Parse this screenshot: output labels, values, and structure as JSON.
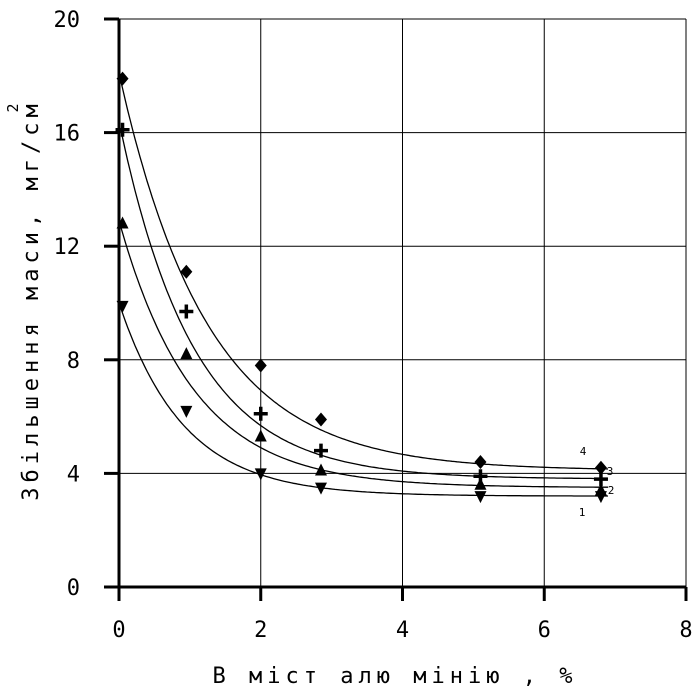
{
  "chart_data": {
    "type": "line",
    "title": "",
    "xlabel": "В міст алю мінію ,  %",
    "ylabel": "Збільшення маси, мг/см",
    "ylabel_superscript": "2",
    "xlim": [
      0,
      8
    ],
    "ylim": [
      0,
      20
    ],
    "x_ticks": [
      0,
      2,
      4,
      6,
      8
    ],
    "x_tick_labels": [
      "0",
      "2",
      "4",
      "6",
      "8"
    ],
    "y_ticks": [
      0,
      4,
      8,
      12,
      16,
      20
    ],
    "y_tick_labels": [
      "0",
      "4",
      "8",
      "12",
      "16",
      "20"
    ],
    "grid": true,
    "legend": "none",
    "series": [
      {
        "name": "1",
        "marker": "triangle-down",
        "x": [
          0.05,
          0.95,
          2.0,
          2.85,
          5.1,
          6.8
        ],
        "y": [
          9.9,
          6.2,
          4.0,
          3.5,
          3.2,
          3.2
        ],
        "curve": {
          "a": 3.2,
          "b": 6.8,
          "k": 1.1
        }
      },
      {
        "name": "2",
        "marker": "triangle-up",
        "x": [
          0.05,
          0.95,
          2.0,
          2.85,
          5.1,
          6.8
        ],
        "y": [
          12.8,
          8.2,
          5.3,
          4.1,
          3.6,
          3.4
        ],
        "curve": {
          "a": 3.5,
          "b": 9.4,
          "k": 0.95
        }
      },
      {
        "name": "3",
        "marker": "cross",
        "x": [
          0.05,
          0.95,
          2.0,
          2.85,
          5.1,
          6.8
        ],
        "y": [
          16.1,
          9.7,
          6.1,
          4.8,
          3.9,
          3.8
        ],
        "curve": {
          "a": 3.8,
          "b": 12.6,
          "k": 0.95
        }
      },
      {
        "name": "4",
        "marker": "diamond",
        "x": [
          0.05,
          0.95,
          2.0,
          2.85,
          5.1,
          6.8
        ],
        "y": [
          17.9,
          11.1,
          7.8,
          5.9,
          4.4,
          4.2
        ],
        "curve": {
          "a": 4.1,
          "b": 14.0,
          "k": 0.8
        }
      }
    ]
  }
}
